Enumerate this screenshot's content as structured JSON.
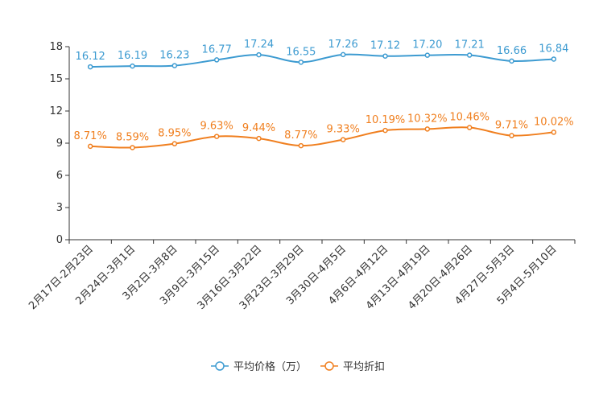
{
  "chart_data": {
    "type": "line",
    "title": "",
    "xlabel": "",
    "ylabel": "",
    "ylim": [
      0,
      18
    ],
    "yticks": [
      0,
      3,
      6,
      9,
      12,
      15,
      18
    ],
    "grid": false,
    "legend_position": "bottom-center",
    "categories": [
      "2月17日-2月23日",
      "2月24日-3月1日",
      "3月2日-3月8日",
      "3月9日-3月15日",
      "3月16日-3月22日",
      "3月23日-3月29日",
      "3月30日-4月5日",
      "4月6日-4月12日",
      "4月13日-4月19日",
      "4月20日-4月26日",
      "4月27日-5月3日",
      "5月4日-5月10日"
    ],
    "series": [
      {
        "name": "平均价格（万）",
        "color": "#3d9bd1",
        "values": [
          16.12,
          16.19,
          16.23,
          16.77,
          17.24,
          16.55,
          17.26,
          17.12,
          17.2,
          17.21,
          16.66,
          16.84
        ],
        "labels": [
          "16.12",
          "16.19",
          "16.23",
          "16.77",
          "17.24",
          "16.55",
          "17.26",
          "17.12",
          "17.20",
          "17.21",
          "16.66",
          "16.84"
        ]
      },
      {
        "name": "平均折扣",
        "color": "#f07f1f",
        "values": [
          8.71,
          8.59,
          8.95,
          9.63,
          9.44,
          8.77,
          9.33,
          10.19,
          10.32,
          10.46,
          9.71,
          10.02
        ],
        "labels": [
          "8.71%",
          "8.59%",
          "8.95%",
          "9.63%",
          "9.44%",
          "8.77%",
          "9.33%",
          "10.19%",
          "10.32%",
          "10.46%",
          "9.71%",
          "10.02%"
        ]
      }
    ]
  }
}
